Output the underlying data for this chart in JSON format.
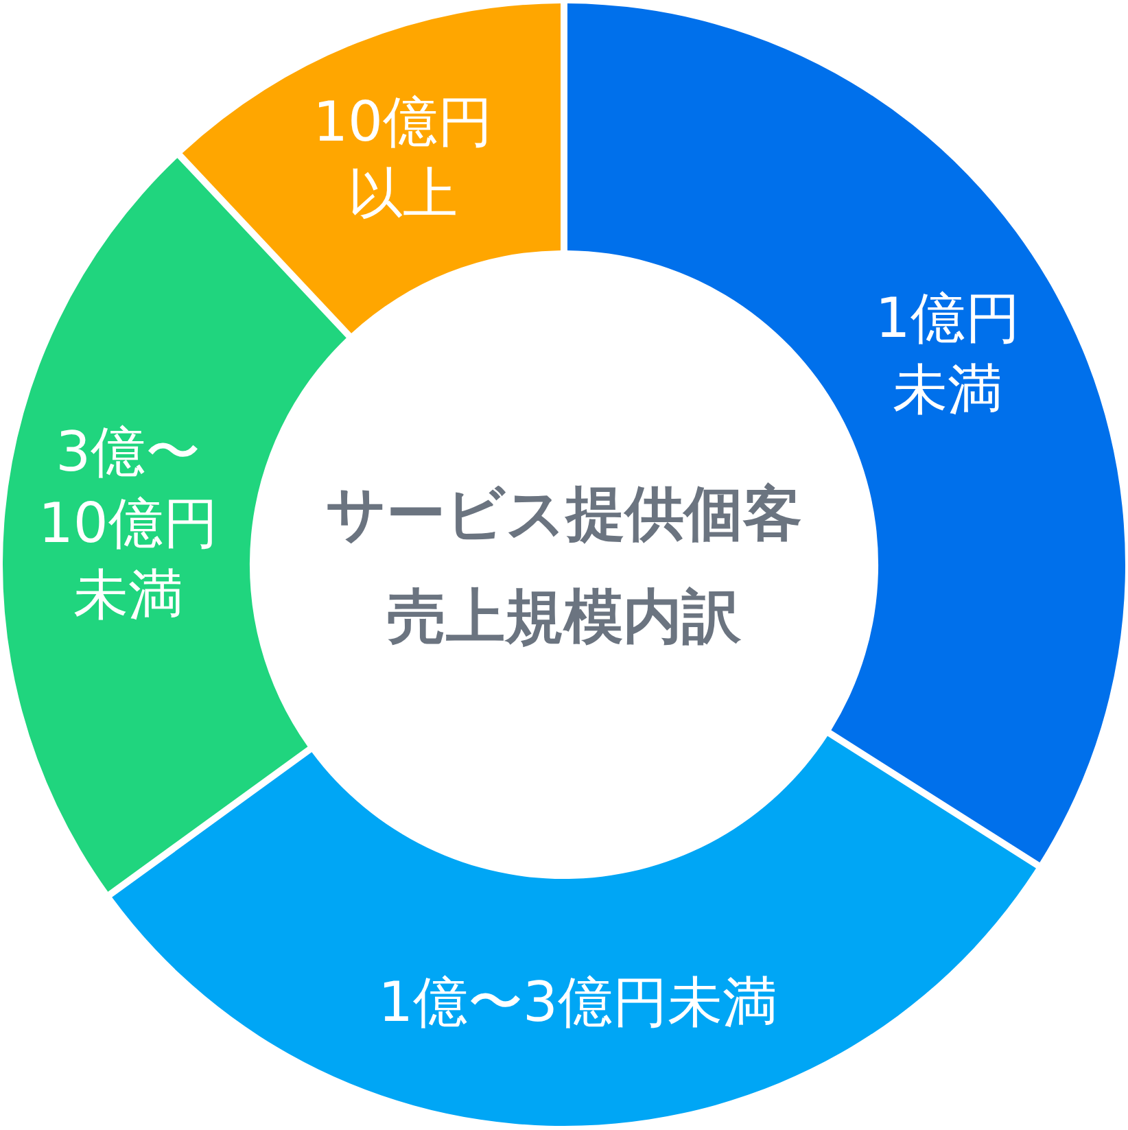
{
  "chart_data": {
    "type": "donut",
    "title": "サービス提供個客売上規模内訳",
    "categories": [
      "1億円未満",
      "1億〜3億円未満",
      "3億〜10億円未満",
      "10億円以上"
    ],
    "values": [
      34,
      31,
      23,
      12
    ],
    "colors": [
      "#0070eb",
      "#00a6f5",
      "#20d57e",
      "#ffa600"
    ]
  }
}
